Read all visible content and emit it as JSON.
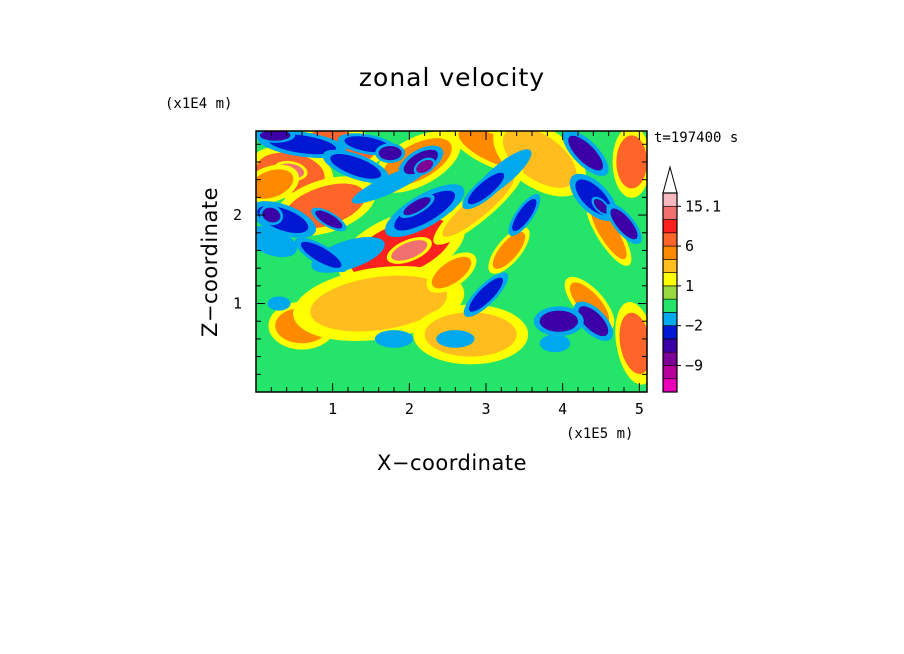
{
  "chart_data": {
    "type": "heatmap",
    "title": "zonal velocity",
    "xlabel": "X−coordinate",
    "ylabel": "Z−coordinate",
    "x_unit": "(x1E5 m)",
    "y_unit": "(x1E4 m)",
    "time_label": "t=197400 s",
    "xlim": [
      0,
      5.1
    ],
    "ylim": [
      0,
      2.95
    ],
    "x_ticks": [
      1,
      2,
      3,
      4,
      5
    ],
    "x_tick_labels": [
      "1",
      "2",
      "3",
      "4",
      "5"
    ],
    "y_ticks": [
      1,
      2
    ],
    "y_tick_labels": [
      "1",
      "2"
    ],
    "colorbar": {
      "levels_bottom_to_top": [
        {
          "color": "#ea00b8"
        },
        {
          "color": "#b5009c"
        },
        {
          "color": "#7d0097"
        },
        {
          "color": "#3c00a7"
        },
        {
          "color": "#0018d2"
        },
        {
          "color": "#00a8ee"
        },
        {
          "color": "#25e46a"
        },
        {
          "color": "#9ad840"
        },
        {
          "color": "#ffff00"
        },
        {
          "color": "#ffbe1e"
        },
        {
          "color": "#ff8a00"
        },
        {
          "color": "#ff6428"
        },
        {
          "color": "#ff2020"
        },
        {
          "color": "#f07070"
        },
        {
          "color": "#f8b8c0"
        }
      ],
      "labels": [
        "15.1",
        "6",
        "1",
        "−2",
        "−9"
      ],
      "label_values": [
        15.1,
        6,
        1,
        -2,
        -9
      ],
      "label_bands": [
        14,
        11,
        8,
        5,
        2
      ],
      "extend_max": true
    },
    "features": [
      {
        "x": 1.9,
        "z": 1.62,
        "rx": 0.7,
        "rz": 0.28,
        "rot": 22,
        "v": 6
      },
      {
        "x": 2.0,
        "z": 1.6,
        "rx": 0.25,
        "rz": 0.09,
        "rot": 22,
        "v": 8
      },
      {
        "x": 0.45,
        "z": 2.48,
        "rx": 0.45,
        "rz": 0.22,
        "rot": -10,
        "v": 5
      },
      {
        "x": 0.45,
        "z": 2.5,
        "rx": 0.18,
        "rz": 0.08,
        "rot": -10,
        "v": 8
      },
      {
        "x": 0.9,
        "z": 2.1,
        "rx": 0.55,
        "rz": 0.22,
        "rot": 18,
        "v": 5
      },
      {
        "x": 1.1,
        "z": 2.78,
        "rx": 0.45,
        "rz": 0.17,
        "rot": -12,
        "v": 5
      },
      {
        "x": 2.1,
        "z": 2.6,
        "rx": 0.5,
        "rz": 0.2,
        "rot": 28,
        "v": 4
      },
      {
        "x": 3.1,
        "z": 2.75,
        "rx": 0.5,
        "rz": 0.15,
        "rot": -25,
        "v": 4
      },
      {
        "x": 4.9,
        "z": 2.6,
        "rx": 0.2,
        "rz": 0.3,
        "rot": 0,
        "v": 5
      },
      {
        "x": 4.95,
        "z": 0.55,
        "rx": 0.2,
        "rz": 0.35,
        "rot": 10,
        "v": 5
      },
      {
        "x": 0.6,
        "z": 0.75,
        "rx": 0.35,
        "rz": 0.2,
        "rot": 0,
        "v": 4
      },
      {
        "x": 0.2,
        "z": 2.35,
        "rx": 0.3,
        "rz": 0.15,
        "rot": 20,
        "v": 4
      },
      {
        "x": 1.6,
        "z": 1.0,
        "rx": 0.9,
        "rz": 0.3,
        "rot": 8,
        "v": 3
      },
      {
        "x": 2.8,
        "z": 0.65,
        "rx": 0.6,
        "rz": 0.25,
        "rot": 0,
        "v": 3
      },
      {
        "x": 3.7,
        "z": 2.65,
        "rx": 0.55,
        "rz": 0.25,
        "rot": -35,
        "v": 3
      },
      {
        "x": 2.9,
        "z": 2.1,
        "rx": 0.6,
        "rz": 0.12,
        "rot": 40,
        "v": 3
      },
      {
        "x": 2.55,
        "z": 1.35,
        "rx": 0.3,
        "rz": 0.12,
        "rot": 35,
        "v": 4
      },
      {
        "x": 3.3,
        "z": 1.6,
        "rx": 0.3,
        "rz": 0.1,
        "rot": 50,
        "v": 4
      },
      {
        "x": 4.35,
        "z": 1.0,
        "rx": 0.35,
        "rz": 0.12,
        "rot": -48,
        "v": 4
      },
      {
        "x": 4.6,
        "z": 1.8,
        "rx": 0.4,
        "rz": 0.1,
        "rot": -58,
        "v": 4
      },
      {
        "x": 1.75,
        "z": 2.35,
        "rx": 0.55,
        "rz": 0.1,
        "rot": 25,
        "v": -2
      },
      {
        "x": 1.2,
        "z": 1.55,
        "rx": 0.5,
        "rz": 0.16,
        "rot": 18,
        "v": -2
      },
      {
        "x": 0.2,
        "z": 1.7,
        "rx": 0.35,
        "rz": 0.15,
        "rot": -20,
        "v": -2
      },
      {
        "x": 0.35,
        "z": 1.95,
        "rx": 0.35,
        "rz": 0.12,
        "rot": -20,
        "v": -3
      },
      {
        "x": 0.2,
        "z": 2.0,
        "rx": 0.12,
        "rz": 0.08,
        "rot": -20,
        "v": -6
      },
      {
        "x": 0.85,
        "z": 1.55,
        "rx": 0.3,
        "rz": 0.08,
        "rot": -30,
        "v": -3
      },
      {
        "x": 0.6,
        "z": 2.8,
        "rx": 0.45,
        "rz": 0.1,
        "rot": -8,
        "v": -3
      },
      {
        "x": 1.3,
        "z": 2.55,
        "rx": 0.35,
        "rz": 0.1,
        "rot": -20,
        "v": -3
      },
      {
        "x": 1.45,
        "z": 2.8,
        "rx": 0.3,
        "rz": 0.08,
        "rot": -10,
        "v": -3
      },
      {
        "x": 2.2,
        "z": 2.05,
        "rx": 0.45,
        "rz": 0.13,
        "rot": 30,
        "v": -3
      },
      {
        "x": 2.1,
        "z": 2.1,
        "rx": 0.2,
        "rz": 0.06,
        "rot": 30,
        "v": -6
      },
      {
        "x": 2.15,
        "z": 2.6,
        "rx": 0.25,
        "rz": 0.1,
        "rot": 30,
        "v": -6
      },
      {
        "x": 2.2,
        "z": 2.55,
        "rx": 0.12,
        "rz": 0.06,
        "rot": 30,
        "v": -9
      },
      {
        "x": 1.75,
        "z": 2.7,
        "rx": 0.15,
        "rz": 0.08,
        "rot": 0,
        "v": -6
      },
      {
        "x": 0.25,
        "z": 2.9,
        "rx": 0.2,
        "rz": 0.06,
        "rot": 0,
        "v": -6
      },
      {
        "x": 0.95,
        "z": 1.95,
        "rx": 0.2,
        "rz": 0.06,
        "rot": -30,
        "v": -6
      },
      {
        "x": 1.8,
        "z": 0.6,
        "rx": 0.25,
        "rz": 0.1,
        "rot": 0,
        "v": -2
      },
      {
        "x": 2.6,
        "z": 0.6,
        "rx": 0.25,
        "rz": 0.1,
        "rot": 0,
        "v": -2
      },
      {
        "x": 3.2,
        "z": 2.45,
        "rx": 0.5,
        "rz": 0.12,
        "rot": 40,
        "v": -2
      },
      {
        "x": 3.0,
        "z": 2.3,
        "rx": 0.3,
        "rz": 0.08,
        "rot": 40,
        "v": -5
      },
      {
        "x": 4.4,
        "z": 2.2,
        "rx": 0.3,
        "rz": 0.12,
        "rot": -45,
        "v": -3
      },
      {
        "x": 4.5,
        "z": 2.1,
        "rx": 0.12,
        "rz": 0.05,
        "rot": -45,
        "v": -6
      },
      {
        "x": 4.4,
        "z": 0.8,
        "rx": 0.25,
        "rz": 0.1,
        "rot": -45,
        "v": -6
      },
      {
        "x": 4.8,
        "z": 1.9,
        "rx": 0.25,
        "rz": 0.08,
        "rot": -50,
        "v": -6
      },
      {
        "x": 4.3,
        "z": 2.7,
        "rx": 0.3,
        "rz": 0.1,
        "rot": -45,
        "v": -6
      },
      {
        "x": 3.95,
        "z": 0.8,
        "rx": 0.25,
        "rz": 0.12,
        "rot": 0,
        "v": -6
      },
      {
        "x": 3.9,
        "z": 0.55,
        "rx": 0.2,
        "rz": 0.1,
        "rot": 0,
        "v": -2
      },
      {
        "x": 0.3,
        "z": 1.0,
        "rx": 0.15,
        "rz": 0.08,
        "rot": 0,
        "v": -2
      },
      {
        "x": 3.0,
        "z": 1.1,
        "rx": 0.3,
        "rz": 0.08,
        "rot": 45,
        "v": -3
      },
      {
        "x": 3.5,
        "z": 2.0,
        "rx": 0.25,
        "rz": 0.07,
        "rot": 55,
        "v": -3
      }
    ]
  }
}
